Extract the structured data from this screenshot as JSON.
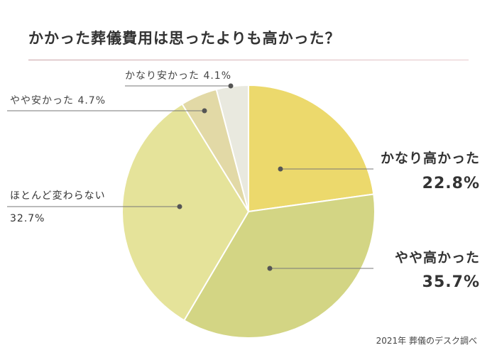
{
  "chart_data": {
    "type": "pie",
    "title": "かかった葬儀費用は思ったよりも高かった？",
    "source": "2021年 葬儀のデスク調べ",
    "slices": [
      {
        "label": "かなり高かった",
        "value": 22.8,
        "display": "22.8%",
        "color": "#ecd96c",
        "emphasis": true,
        "label_side": "right"
      },
      {
        "label": "やや高かった",
        "value": 35.7,
        "display": "35.7%",
        "color": "#d3d584",
        "emphasis": true,
        "label_side": "right"
      },
      {
        "label": "ほとんど変わらない",
        "value": 32.7,
        "display": "32.7%",
        "color": "#e5e39a",
        "emphasis": false,
        "label_side": "left"
      },
      {
        "label": "やや安かった",
        "value": 4.7,
        "display": "4.7%",
        "color": "#e2d9a6",
        "emphasis": false,
        "label_side": "left"
      },
      {
        "label": "かなり安かった",
        "value": 4.1,
        "display": "4.1%",
        "color": "#e9e9df",
        "emphasis": false,
        "label_side": "left"
      }
    ]
  }
}
